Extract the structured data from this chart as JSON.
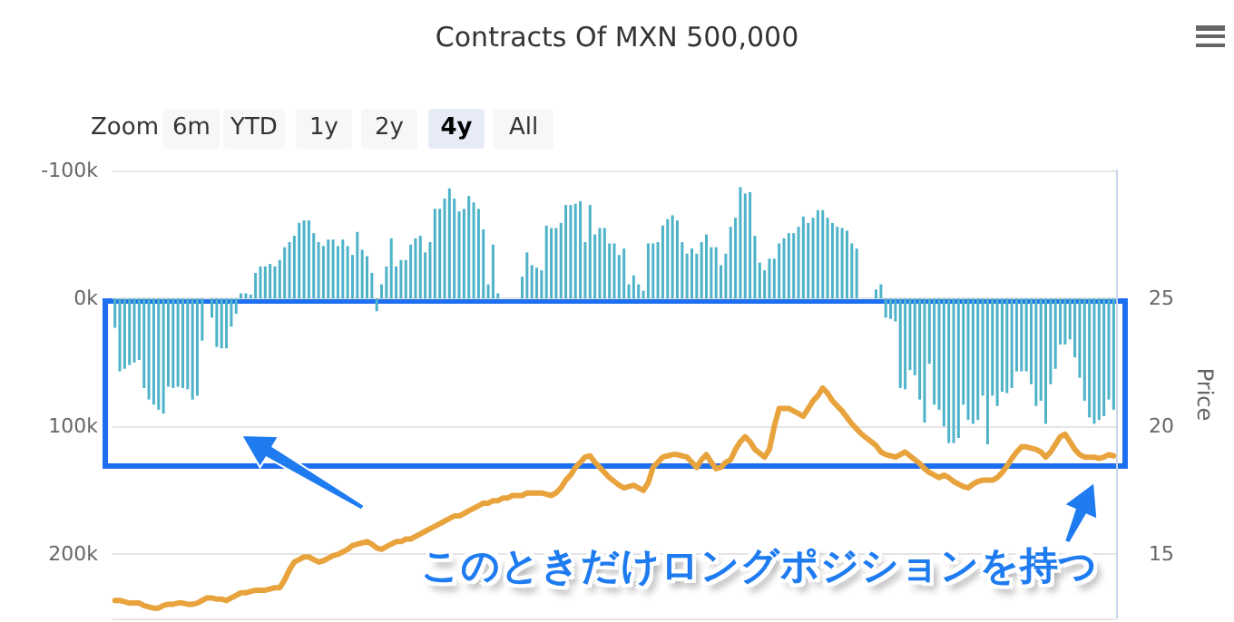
{
  "chart_data": {
    "type": "bar",
    "title": "Contracts Of MXN 500,000",
    "y2label": "Price",
    "annotations": [
      "Zoom",
      "6m",
      "YTD",
      "1y",
      "2y",
      "4y",
      "All",
      "このときだけロングポジションを持つ"
    ],
    "categories": [
      null,
      null,
      null,
      null,
      null,
      null,
      null,
      null,
      null,
      null,
      null,
      null,
      null,
      null,
      null,
      null,
      null,
      null,
      null,
      null,
      null,
      null,
      null,
      null,
      null,
      null,
      null,
      null,
      null,
      null,
      null,
      null,
      null,
      null,
      null,
      null,
      null,
      null,
      null,
      null,
      null,
      null,
      null,
      null,
      null,
      null,
      null,
      null,
      null,
      null,
      null,
      null,
      null,
      null,
      null,
      null,
      null,
      null,
      null,
      null,
      null,
      null,
      null,
      null,
      null,
      null,
      null,
      null,
      null,
      null,
      null,
      null,
      null,
      null,
      null,
      null,
      null,
      null,
      null,
      null,
      null,
      null,
      null,
      null,
      null,
      null,
      null,
      null,
      null,
      null,
      null,
      null,
      null,
      null,
      null,
      null,
      null,
      null,
      null,
      null,
      null,
      null,
      null,
      null,
      null,
      null,
      null,
      null,
      null,
      null,
      null,
      null,
      null,
      null,
      null,
      null,
      null,
      null,
      null,
      null,
      null,
      null,
      null,
      null,
      null,
      null,
      null,
      null,
      null,
      null,
      null,
      null,
      null,
      null,
      null,
      null,
      null,
      null,
      null,
      null,
      null,
      null,
      null,
      null,
      null,
      null,
      null,
      null,
      null,
      null,
      null,
      null,
      null,
      null,
      null,
      null,
      null,
      null,
      null,
      null,
      null,
      null,
      null,
      null,
      null,
      null,
      null,
      null,
      null,
      null,
      null,
      null,
      null,
      null,
      null,
      null,
      null,
      null,
      null,
      null,
      null,
      null,
      null,
      null,
      null,
      null,
      null,
      null,
      null,
      null,
      null,
      null,
      null,
      null,
      null,
      null,
      null,
      null,
      null,
      null,
      null,
      null,
      null,
      null,
      null,
      null,
      null
    ],
    "series": [
      {
        "type": "bar",
        "color": "#4eb3c9",
        "values": [
          23000,
          57000,
          55000,
          52000,
          50000,
          48000,
          70000,
          79000,
          83000,
          87000,
          90000,
          69000,
          70000,
          69000,
          70000,
          71000,
          79000,
          76000,
          33000,
          null,
          15000,
          38000,
          39000,
          39000,
          22000,
          12000,
          -4000,
          -4000,
          -3000,
          -20000,
          -25000,
          -25000,
          -27000,
          -25000,
          -30000,
          -40000,
          -44000,
          -49000,
          -59000,
          -61000,
          -61000,
          -51000,
          -44000,
          -41000,
          -46000,
          -46000,
          -41000,
          -46000,
          -41000,
          -34000,
          -52000,
          -38000,
          -33000,
          -20000,
          10000,
          -11000,
          -25000,
          -47000,
          -25000,
          -30000,
          -30000,
          -42000,
          -47000,
          -49000,
          -36000,
          -44000,
          -70000,
          -70000,
          -78000,
          -86000,
          -78000,
          -68000,
          -70000,
          -80000,
          -75000,
          -70000,
          -54000,
          -11000,
          -42000,
          -4000,
          null,
          null,
          null,
          null,
          -17000,
          -36000,
          -26000,
          -24000,
          -22000,
          -57000,
          -55000,
          -55000,
          -59000,
          -73000,
          -73000,
          -74000,
          -76000,
          -44000,
          -73000,
          -50000,
          -55000,
          -55000,
          -43000,
          -43000,
          -34000,
          -39000,
          -11000,
          -18000,
          -11000,
          -6000,
          -43000,
          -43000,
          -44000,
          -57000,
          -62000,
          -65000,
          -61000,
          -44000,
          -35000,
          -39000,
          -35000,
          -44000,
          -50000,
          -40000,
          -40000,
          -26000,
          -35000,
          -56000,
          -63000,
          -87000,
          -82000,
          -83000,
          -49000,
          -28000,
          -22000,
          -31000,
          -31000,
          -43000,
          -47000,
          -51000,
          -51000,
          -56000,
          -64000,
          -59000,
          -63000,
          -69000,
          -69000,
          -63000,
          -59000,
          -56000,
          -55000,
          -53000,
          -43000,
          -39000,
          null,
          null,
          null,
          -7000,
          -11000,
          15000,
          16000,
          18000,
          70000,
          71000,
          56000,
          60000,
          79000,
          97000,
          51000,
          83000,
          87000,
          100000,
          113000,
          113000,
          109000,
          83000,
          95000,
          98000,
          95000,
          76000,
          114000,
          76000,
          84000,
          73000,
          74000,
          70000,
          57000,
          57000,
          57000,
          67000,
          84000,
          80000,
          98000,
          67000,
          55000,
          36000,
          36000,
          32000,
          46000,
          62000,
          80000,
          93000,
          98000,
          95000,
          92000,
          79000,
          87000
        ]
      },
      {
        "type": "line",
        "axis": "y2",
        "color": "#e8a33d",
        "values": [
          13.2,
          13.2,
          13.15,
          13.1,
          13.1,
          13.1,
          13.0,
          12.95,
          12.9,
          12.9,
          13.0,
          13.05,
          13.05,
          13.1,
          13.1,
          13.05,
          13.05,
          13.1,
          13.2,
          13.3,
          13.3,
          13.25,
          13.25,
          13.2,
          13.3,
          13.4,
          13.5,
          13.5,
          13.55,
          13.6,
          13.6,
          13.6,
          13.65,
          13.7,
          13.7,
          14.0,
          14.4,
          14.7,
          14.8,
          14.9,
          14.9,
          14.8,
          14.7,
          14.75,
          14.85,
          14.95,
          15.0,
          15.1,
          15.2,
          15.35,
          15.4,
          15.45,
          15.5,
          15.4,
          15.25,
          15.2,
          15.3,
          15.4,
          15.5,
          15.5,
          15.6,
          15.6,
          15.7,
          15.8,
          15.9,
          16.0,
          16.1,
          16.2,
          16.3,
          16.4,
          16.5,
          16.5,
          16.6,
          16.7,
          16.8,
          16.9,
          17.0,
          17.0,
          17.1,
          17.1,
          17.2,
          17.2,
          17.3,
          17.3,
          17.3,
          17.4,
          17.4,
          17.4,
          17.4,
          17.35,
          17.3,
          17.4,
          17.6,
          17.9,
          18.1,
          18.4,
          18.6,
          18.8,
          18.85,
          18.6,
          18.4,
          18.2,
          18.0,
          17.85,
          17.7,
          17.6,
          17.65,
          17.7,
          17.6,
          17.5,
          17.8,
          18.4,
          18.6,
          18.8,
          18.85,
          18.9,
          18.9,
          18.85,
          18.8,
          18.6,
          18.4,
          18.7,
          18.9,
          18.6,
          18.35,
          18.4,
          18.6,
          18.7,
          19.1,
          19.4,
          19.6,
          19.4,
          19.1,
          18.95,
          18.8,
          19.1,
          20.0,
          20.7,
          20.7,
          20.7,
          20.6,
          20.5,
          20.4,
          20.7,
          21.0,
          21.2,
          21.5,
          21.3,
          21.0,
          20.8,
          20.6,
          20.35,
          20.1,
          19.9,
          19.7,
          19.55,
          19.4,
          19.25,
          19.0,
          18.9,
          18.85,
          18.8,
          18.9,
          19.0,
          18.85,
          18.7,
          18.55,
          18.35,
          18.2,
          18.1,
          18.0,
          18.1,
          18.0,
          17.85,
          17.75,
          17.65,
          17.6,
          17.75,
          17.85,
          17.9,
          17.9,
          17.9,
          18.0,
          18.2,
          18.45,
          18.75,
          19.0,
          19.2,
          19.2,
          19.15,
          19.1,
          19.0,
          18.8,
          19.0,
          19.3,
          19.6,
          19.7,
          19.4,
          19.1,
          18.9,
          18.8,
          18.8,
          18.8,
          18.75,
          18.8,
          18.9,
          18.85
        ]
      }
    ],
    "ylim": [
      250000,
      -100000
    ],
    "yticks": [
      {
        "value": -100000,
        "label": "-100k"
      },
      {
        "value": 0,
        "label": "0k"
      },
      {
        "value": 100000,
        "label": "100k"
      },
      {
        "value": 200000,
        "label": "200k"
      }
    ],
    "y2lim": [
      12.5,
      30
    ],
    "y2ticks": [
      15,
      20,
      25
    ],
    "grid": "y",
    "marker": "none"
  }
}
